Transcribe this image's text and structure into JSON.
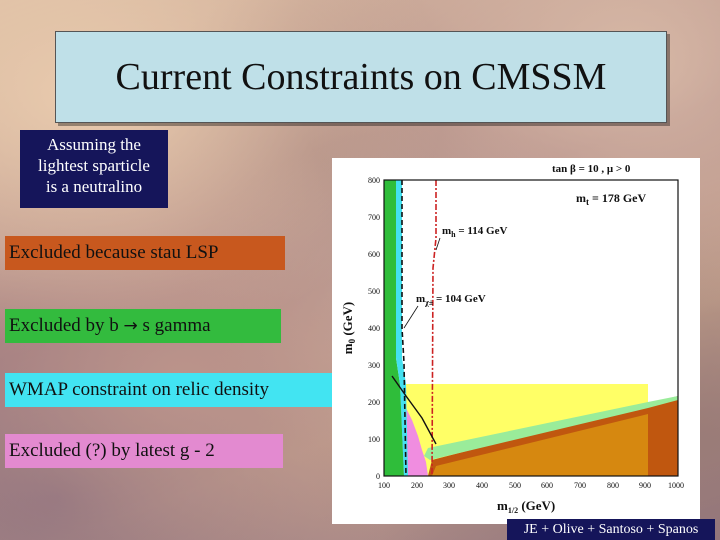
{
  "slide": {
    "title": "Current Constraints on CMSSM",
    "assumption": [
      "Assuming the",
      "lightest sparticle",
      "is a neutralino"
    ],
    "labels": {
      "stau": "Excluded because stau LSP",
      "bsg_pre": "Excluded by b",
      "bsg_arrow": "→",
      "bsg_post": " s gamma",
      "wmap": "WMAP constraint on relic density",
      "g2": "Excluded (?) by latest g - 2"
    },
    "credit": "JE + Olive + Santoso + Spanos"
  },
  "plot": {
    "param_label": "tan β = 10 ,  μ > 0",
    "mt_label": "m",
    "mt_sub": "t",
    "mt_value": " = 178 GeV",
    "mh_label": "m",
    "mh_sub": "h",
    "mh_value": " = 114 GeV",
    "mchi_label": "m",
    "mchi_sub": "χ±",
    "mchi_value": " = 104 GeV",
    "ylabel": "m",
    "ylabel_sub": "0",
    "ylabel_unit": " (GeV)",
    "xlabel": "m",
    "xlabel_sub": "1/2",
    "xlabel_unit": " (GeV)",
    "x_ticks": [
      "100",
      "200",
      "300",
      "400",
      "500",
      "600",
      "700",
      "800",
      "900",
      "1000"
    ],
    "y_ticks": [
      "0",
      "100",
      "200",
      "300",
      "400",
      "500",
      "600",
      "700",
      "800"
    ],
    "colors": {
      "stau": "#c0570f",
      "bsg": "#2fbd3a",
      "wmap": "#44e0f0",
      "g2_pink": "#f08de0",
      "g2_yellow": "#ffff66",
      "mh_line": "#cc2222",
      "chargino_line": "#111111"
    }
  }
}
